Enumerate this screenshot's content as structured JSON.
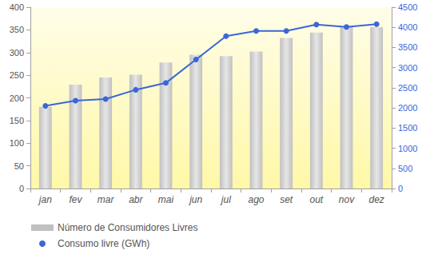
{
  "chart_data": {
    "type": "bar",
    "categories": [
      "jan",
      "fev",
      "mar",
      "abr",
      "mai",
      "jun",
      "jul",
      "ago",
      "set",
      "out",
      "nov",
      "dez"
    ],
    "series": [
      {
        "name": "Número de Consumidores Livres",
        "type": "bar",
        "color": "#c0c0c0",
        "values": [
          180,
          229,
          245,
          251,
          278,
          295,
          292,
          302,
          332,
          344,
          356,
          356
        ]
      },
      {
        "name": "Consumo livre (GWh)",
        "type": "line",
        "axis": "y2",
        "color": "#3a66d8",
        "marker": "circle",
        "values": [
          2050,
          2180,
          2220,
          2450,
          2620,
          3200,
          3780,
          3910,
          3910,
          4070,
          4010,
          4080
        ]
      }
    ],
    "ylim": [
      0,
      400
    ],
    "yticks": [
      0,
      50,
      100,
      150,
      200,
      250,
      300,
      350,
      400
    ],
    "y2lim": [
      0,
      4500
    ],
    "y2ticks": [
      0,
      500,
      1000,
      1500,
      2000,
      2500,
      3000,
      3500,
      4000,
      4500
    ],
    "grid": false,
    "legend": "lower left"
  }
}
